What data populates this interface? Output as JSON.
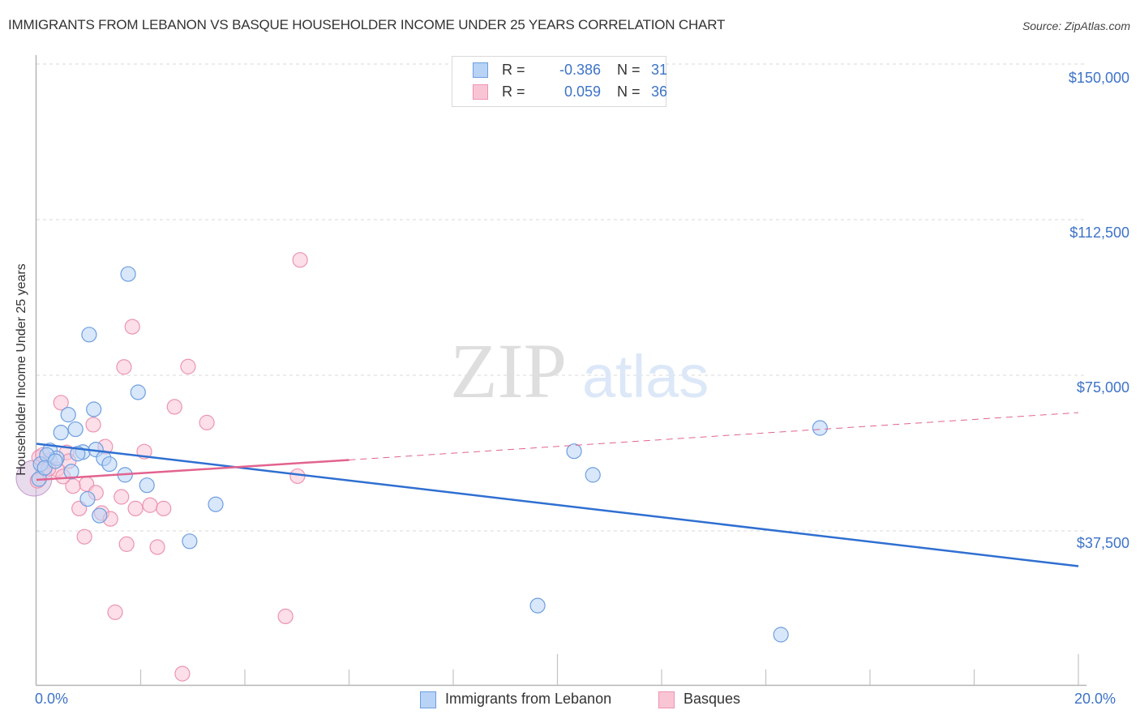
{
  "header": {
    "title": "IMMIGRANTS FROM LEBANON VS BASQUE HOUSEHOLDER INCOME UNDER 25 YEARS CORRELATION CHART",
    "source": "Source: ZipAtlas.com"
  },
  "watermark": {
    "zip": "ZIP",
    "atlas": "atlas"
  },
  "colors": {
    "blue_fill": "#b8d3f5",
    "blue_stroke": "#6d9ee0",
    "blue_line": "#2f6fd1",
    "pink_fill": "#f9c5d5",
    "pink_stroke": "#ec94b1",
    "pink_line": "#e2638f",
    "tick_text": "#3d73c8",
    "grid": "#d9d9d9"
  },
  "legend": {
    "series": [
      {
        "r_label": "R =",
        "r_value": "-0.386",
        "n_label": "N =",
        "n_value": "31"
      },
      {
        "r_label": "R =",
        "r_value": "0.059",
        "n_label": "N =",
        "n_value": "36"
      }
    ]
  },
  "bottom_legend": {
    "items": [
      {
        "label": "Immigrants from Lebanon"
      },
      {
        "label": "Basques"
      }
    ]
  },
  "axes": {
    "y_label": "Householder Income Under 25 years",
    "y_ticks": [
      "$150,000",
      "$112,500",
      "$75,000",
      "$37,500"
    ],
    "x_ticks": [
      "0.0%",
      "20.0%"
    ]
  },
  "chart_data": {
    "type": "scatter",
    "title": "IMMIGRANTS FROM LEBANON VS BASQUE HOUSEHOLDER INCOME UNDER 25 YEARS CORRELATION CHART",
    "xlabel": "",
    "ylabel": "Householder Income Under 25 years",
    "xlim": [
      0,
      20
    ],
    "ylim": [
      0,
      152000
    ],
    "x_unit": "%",
    "y_ticks": [
      37500,
      75000,
      112500,
      150000
    ],
    "x_ticks": [
      0,
      20
    ],
    "grid": {
      "horizontal": true,
      "style": "dashed"
    },
    "legend_position": "top-center and bottom",
    "series": [
      {
        "name": "Immigrants from Lebanon",
        "color": "#6d9ee0",
        "R": -0.386,
        "N": 31,
        "points": [
          [
            1.76,
            99400
          ],
          [
            1.01,
            84800
          ],
          [
            1.95,
            70900
          ],
          [
            1.1,
            66800
          ],
          [
            0.61,
            65500
          ],
          [
            0.47,
            61200
          ],
          [
            0.75,
            62000
          ],
          [
            0.89,
            56500
          ],
          [
            0.26,
            56900
          ],
          [
            1.14,
            57100
          ],
          [
            0.08,
            53600
          ],
          [
            0.39,
            55000
          ],
          [
            0.67,
            51800
          ],
          [
            1.29,
            55000
          ],
          [
            1.4,
            53600
          ],
          [
            1.7,
            51000
          ],
          [
            2.12,
            48500
          ],
          [
            0.98,
            45200
          ],
          [
            1.21,
            41200
          ],
          [
            3.44,
            43900
          ],
          [
            2.94,
            35000
          ],
          [
            10.32,
            56700
          ],
          [
            10.68,
            51000
          ],
          [
            15.04,
            62300
          ],
          [
            9.62,
            19500
          ],
          [
            14.29,
            12500
          ],
          [
            0.05,
            50000
          ],
          [
            0.2,
            55800
          ],
          [
            0.16,
            52700
          ],
          [
            0.36,
            54300
          ],
          [
            0.79,
            56100
          ]
        ],
        "trendline": {
          "x": [
            0,
            20
          ],
          "y": [
            58500,
            29000
          ],
          "style": "solid"
        }
      },
      {
        "name": "Basques",
        "color": "#ec94b1",
        "R": 0.059,
        "N": 36,
        "points": [
          [
            5.06,
            102800
          ],
          [
            1.84,
            86700
          ],
          [
            1.68,
            77000
          ],
          [
            2.91,
            77100
          ],
          [
            0.47,
            68400
          ],
          [
            2.65,
            67400
          ],
          [
            1.09,
            63100
          ],
          [
            3.27,
            63600
          ],
          [
            1.32,
            57800
          ],
          [
            0.58,
            56400
          ],
          [
            2.07,
            56600
          ],
          [
            0.26,
            54500
          ],
          [
            0.62,
            54300
          ],
          [
            0.39,
            52300
          ],
          [
            0.05,
            55200
          ],
          [
            0.96,
            48800
          ],
          [
            0.7,
            48300
          ],
          [
            1.63,
            45700
          ],
          [
            1.25,
            41800
          ],
          [
            1.42,
            40400
          ],
          [
            1.9,
            42900
          ],
          [
            2.18,
            43700
          ],
          [
            2.44,
            42900
          ],
          [
            0.82,
            42900
          ],
          [
            0.92,
            36100
          ],
          [
            1.73,
            34300
          ],
          [
            2.32,
            33600
          ],
          [
            5.01,
            50700
          ],
          [
            1.51,
            17900
          ],
          [
            4.78,
            16900
          ],
          [
            2.8,
            3100
          ],
          [
            0.12,
            55800
          ],
          [
            0.23,
            52500
          ],
          [
            0.02,
            49600
          ],
          [
            0.51,
            50600
          ],
          [
            1.14,
            46700
          ]
        ],
        "trendline": {
          "x": [
            0,
            6
          ],
          "y": [
            49800,
            54600
          ],
          "style": "solid",
          "extended": {
            "x": [
              6,
              20
            ],
            "y": [
              54600,
              66000
            ],
            "style": "dashed"
          }
        }
      }
    ]
  }
}
